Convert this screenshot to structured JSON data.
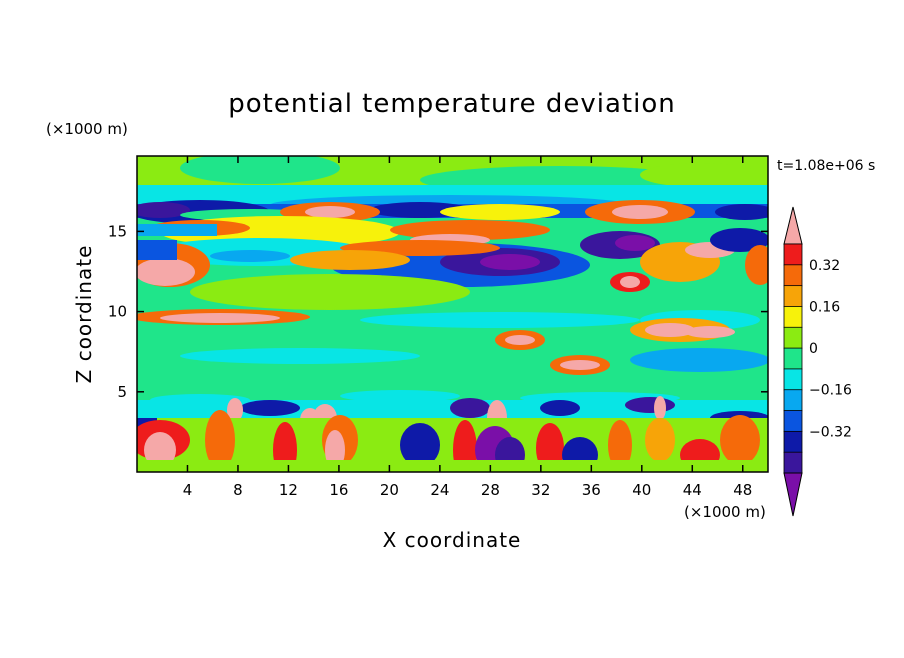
{
  "chart_data": {
    "type": "heatmap",
    "title": "potential temperature deviation",
    "xlabel": "X coordinate",
    "ylabel": "Z coordinate",
    "x_unit": "(×1000 m)",
    "y_unit": "(×1000 m)",
    "time_label": "t=1.08e+06 s",
    "xlim": [
      0,
      50
    ],
    "ylim": [
      0,
      19.7
    ],
    "x_ticks": [
      4,
      8,
      12,
      16,
      20,
      24,
      28,
      32,
      36,
      40,
      44,
      48
    ],
    "y_ticks": [
      5,
      10,
      15
    ],
    "colorbar": {
      "labels": [
        "0.32",
        "0.16",
        "0",
        "−0.16",
        "−0.32"
      ],
      "label_values": [
        0.32,
        0.16,
        0,
        -0.16,
        -0.32
      ],
      "levels": [
        -0.4,
        -0.32,
        -0.24,
        -0.16,
        -0.08,
        0,
        0.08,
        0.16,
        0.24,
        0.32,
        0.4
      ],
      "colors": [
        "#7A0FA8",
        "#3A169C",
        "#0E1AA8",
        "#0A55E0",
        "#08A8F0",
        "#08E5E5",
        "#1FE58A",
        "#8BEB12",
        "#F7F20B",
        "#F7A408",
        "#F56A0A",
        "#EE1C1C",
        "#F5A8A8"
      ],
      "extend": "both"
    },
    "grid": false
  }
}
